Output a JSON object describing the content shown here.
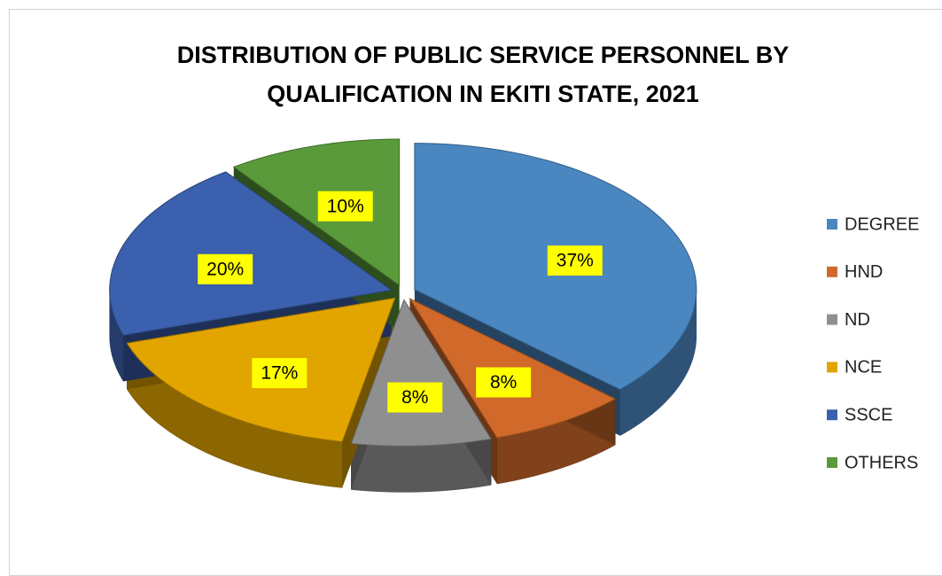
{
  "chart_data": {
    "type": "pie",
    "title": "DISTRIBUTION OF PUBLIC SERVICE PERSONNEL BY QUALIFICATION IN EKITI STATE, 2021",
    "categories": [
      "DEGREE",
      "HND",
      "ND",
      "NCE",
      "SSCE",
      "OTHERS"
    ],
    "values": [
      37,
      8,
      8,
      17,
      20,
      10
    ],
    "value_labels": [
      "37%",
      "8%",
      "8%",
      "17%",
      "20%",
      "10%"
    ],
    "colors": [
      "#4a86c0",
      "#d0692a",
      "#8f8f8f",
      "#e2a500",
      "#3b60ad",
      "#5a9a3a"
    ],
    "legend": "right"
  }
}
